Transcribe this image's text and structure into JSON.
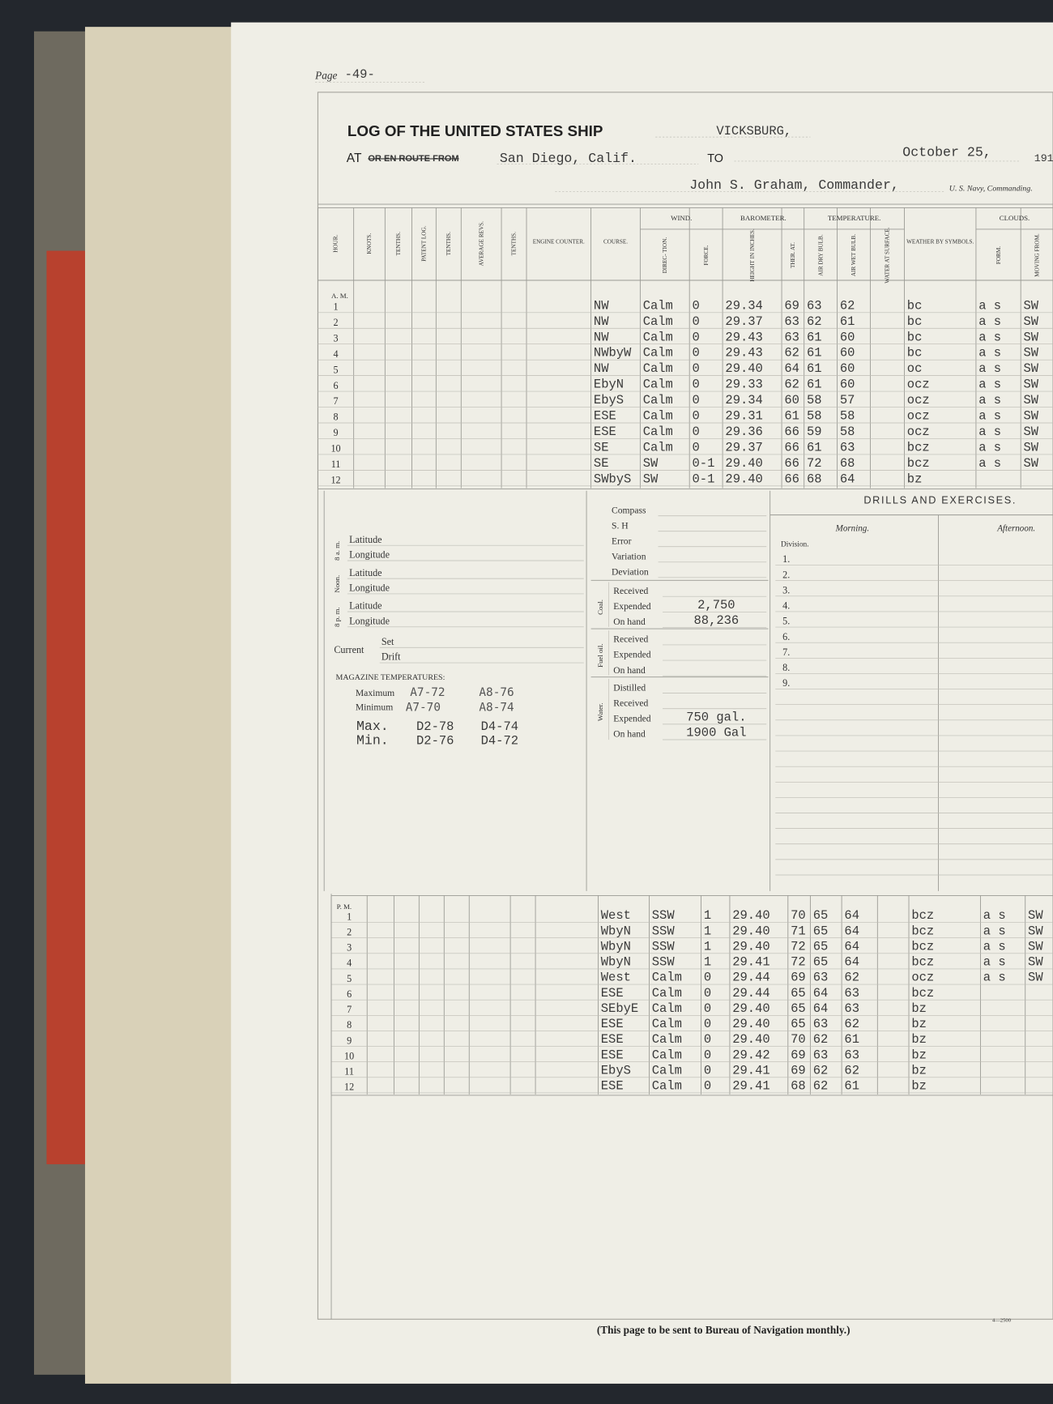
{
  "page": {
    "label": "Page",
    "number": "-49-"
  },
  "header": {
    "title": "LOG OF THE UNITED STATES SHIP",
    "ship": "VICKSBURG,",
    "at": "AT",
    "route": "OR EN ROUTE FROM",
    "place": "San Diego, Calif.",
    "to": "TO",
    "date": "October 25,",
    "year": "191",
    "commander": "John S. Graham, Commander,",
    "navy": "U. S. Navy, Commanding."
  },
  "table": {
    "columns": [
      "HOUR.",
      "KNOTS.",
      "TENTHS.",
      "PATENT LOG.",
      "TENTHS.",
      "AVERAGE REVS.",
      "TENTHS.",
      "ENGINE COUNTER.",
      "COURSE.",
      "DIREC- TION.",
      "FORCE.",
      "HEIGHT IN INCHES.",
      "THER. AT.",
      "AIR DRY BULB.",
      "AIR WET BULB.",
      "WATER AT SURFACE.",
      "WEATHER BY SYMBOLS.",
      "FORM.",
      "MOVING FROM."
    ],
    "groups": {
      "wind": "WIND.",
      "barometer": "BAROMETER.",
      "temperature": "TEMPERATURE.",
      "clouds": "CLOUDS."
    },
    "am_label": "A. M.",
    "am_rows": [
      [
        "1",
        "NW",
        "Calm",
        "0",
        "29.34",
        "69",
        "63",
        "62",
        "bc",
        "a s",
        "SW"
      ],
      [
        "2",
        "NW",
        "Calm",
        "0",
        "29.37",
        "63",
        "62",
        "61",
        "bc",
        "a s",
        "SW"
      ],
      [
        "3",
        "NW",
        "Calm",
        "0",
        "29.43",
        "63",
        "61",
        "60",
        "bc",
        "a s",
        "SW"
      ],
      [
        "4",
        "NWbyW",
        "Calm",
        "0",
        "29.43",
        "62",
        "61",
        "60",
        "bc",
        "a s",
        "SW"
      ],
      [
        "5",
        "NW",
        "Calm",
        "0",
        "29.40",
        "64",
        "61",
        "60",
        "oc",
        "a s",
        "SW"
      ],
      [
        "6",
        "EbyN",
        "Calm",
        "0",
        "29.33",
        "62",
        "61",
        "60",
        "ocz",
        "a s",
        "SW"
      ],
      [
        "7",
        "EbyS",
        "Calm",
        "0",
        "29.34",
        "60",
        "58",
        "57",
        "ocz",
        "a s",
        "SW"
      ],
      [
        "8",
        "ESE",
        "Calm",
        "0",
        "29.31",
        "61",
        "58",
        "58",
        "ocz",
        "a s",
        "SW"
      ],
      [
        "9",
        "ESE",
        "Calm",
        "0",
        "29.36",
        "66",
        "59",
        "58",
        "ocz",
        "a s",
        "SW"
      ],
      [
        "10",
        "SE",
        "Calm",
        "0",
        "29.37",
        "66",
        "61",
        "63",
        "bcz",
        "a s",
        "SW"
      ],
      [
        "11",
        "SE",
        "SW",
        "0-1",
        "29.40",
        "66",
        "72",
        "68",
        "bcz",
        "a s",
        "SW"
      ],
      [
        "12",
        "SWbyS",
        "SW",
        "0-1",
        "29.40",
        "66",
        "68",
        "64",
        "bz",
        null,
        null
      ]
    ],
    "pm_label": "P. M.",
    "pm_rows": [
      [
        "1",
        "West",
        "SSW",
        "1",
        "29.40",
        "70",
        "65",
        "64",
        "bcz",
        "a s",
        "SW"
      ],
      [
        "2",
        "WbyN",
        "SSW",
        "1",
        "29.40",
        "71",
        "65",
        "64",
        "bcz",
        "a s",
        "SW"
      ],
      [
        "3",
        "WbyN",
        "SSW",
        "1",
        "29.40",
        "72",
        "65",
        "64",
        "bcz",
        "a s",
        "SW"
      ],
      [
        "4",
        "WbyN",
        "SSW",
        "1",
        "29.41",
        "72",
        "65",
        "64",
        "bcz",
        "a s",
        "SW"
      ],
      [
        "5",
        "West",
        "Calm",
        "0",
        "29.44",
        "69",
        "63",
        "62",
        "ocz",
        "a s",
        "SW"
      ],
      [
        "6",
        "ESE",
        "Calm",
        "0",
        "29.44",
        "65",
        "64",
        "63",
        "bcz",
        null,
        null
      ],
      [
        "7",
        "SEbyE",
        "Calm",
        "0",
        "29.40",
        "65",
        "64",
        "63",
        "bz",
        null,
        null
      ],
      [
        "8",
        "ESE",
        "Calm",
        "0",
        "29.40",
        "65",
        "63",
        "62",
        "bz",
        null,
        null
      ],
      [
        "9",
        "ESE",
        "Calm",
        "0",
        "29.40",
        "70",
        "62",
        "61",
        "bz",
        null,
        null
      ],
      [
        "10",
        "ESE",
        "Calm",
        "0",
        "29.42",
        "69",
        "63",
        "63",
        "bz",
        null,
        null
      ],
      [
        "11",
        "EbyS",
        "Calm",
        "0",
        "29.41",
        "69",
        "62",
        "62",
        "bz",
        null,
        null
      ],
      [
        "12",
        "ESE",
        "Calm",
        "0",
        "29.41",
        "68",
        "62",
        "61",
        "bz",
        null,
        null
      ]
    ]
  },
  "position": {
    "groups": [
      {
        "time": "8 a. m.",
        "latitude": "Latitude",
        "longitude": "Longitude"
      },
      {
        "time": "Noon.",
        "latitude": "Latitude",
        "longitude": "Longitude"
      },
      {
        "time": "8 p. m.",
        "latitude": "Latitude",
        "longitude": "Longitude"
      }
    ],
    "current": "Current",
    "set": "Set",
    "drift": "Drift",
    "magazine": {
      "title": "MAGAZINE TEMPERATURES:",
      "maximum": "Maximum",
      "minimum": "Minimum",
      "maximum_values": [
        "A7-72",
        "A8-76"
      ],
      "minimum_values": [
        "A7-70",
        "A8-74"
      ],
      "max": "Max.",
      "min": "Min.",
      "max_values": [
        "D2-78",
        "D4-74"
      ],
      "min_values": [
        "D2-76",
        "D4-72"
      ]
    }
  },
  "compass": {
    "labels": [
      "Compass",
      "S. H",
      "Error",
      "Variation",
      "Deviation"
    ],
    "coal": {
      "title": "Coal.",
      "received": "Received",
      "expended": "Expended",
      "expended_value": "2,750",
      "on_hand": "On hand",
      "on_hand_value": "88,236"
    },
    "fuel_oil": {
      "title": "Fuel oil.",
      "received": "Received",
      "expended": "Expended",
      "on_hand": "On hand"
    },
    "water": {
      "title": "Water.",
      "distilled": "Distilled",
      "received": "Received",
      "expended": "Expended",
      "expended_value": "750 gal.",
      "on_hand": "On hand",
      "on_hand_value": "1900 Gal"
    }
  },
  "drills": {
    "title": "DRILLS AND EXERCISES.",
    "morning": "Morning.",
    "afternoon": "Afternoon.",
    "division": "Division.",
    "numbers": [
      "1.",
      "2.",
      "3.",
      "4.",
      "5.",
      "6.",
      "7.",
      "8.",
      "9."
    ]
  },
  "footer": {
    "note": "(This page to be sent to Bureau of Navigation monthly.)",
    "form": "4—2500"
  }
}
